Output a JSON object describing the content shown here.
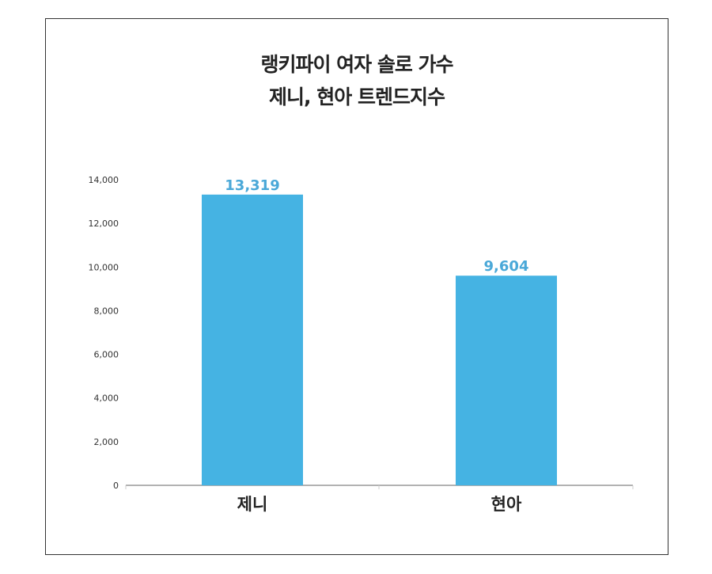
{
  "chart_data": {
    "type": "bar",
    "title_lines": [
      "랭키파이 여자 솔로 가수",
      "제니, 현아 트렌드지수"
    ],
    "categories": [
      "제니",
      "현아"
    ],
    "values": [
      13319,
      9604
    ],
    "value_labels": [
      "13,319",
      "9,604"
    ],
    "ylim": [
      0,
      14000
    ],
    "yticks": [
      0,
      2000,
      4000,
      6000,
      8000,
      10000,
      12000,
      14000
    ],
    "ytick_labels": [
      "0",
      "2,000",
      "4,000",
      "6,000",
      "8,000",
      "10,000",
      "12,000",
      "14,000"
    ],
    "grid": false,
    "bar_color": "#45b3e3",
    "label_color": "#4aa8d8"
  }
}
